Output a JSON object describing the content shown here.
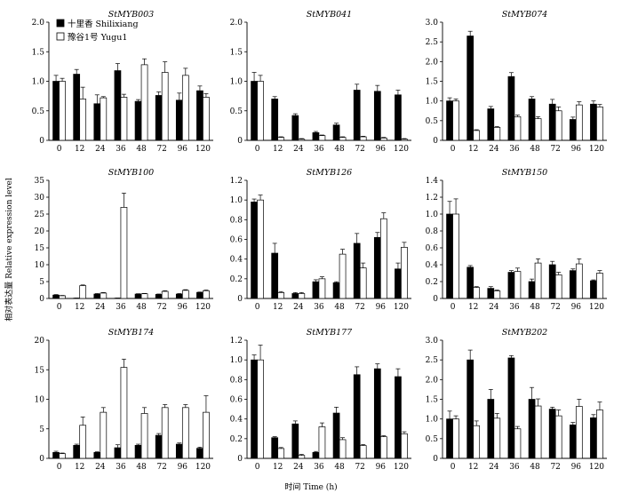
{
  "figure": {
    "ylabel": "相对表达量 Relative expression level",
    "xlabel": "时间 Time (h)"
  },
  "legend": {
    "items": [
      {
        "label": "十里香 Shilixiang",
        "fill": "#000000"
      },
      {
        "label": "豫谷1号 Yugu1",
        "fill": "#ffffff"
      }
    ]
  },
  "chart_data": [
    {
      "type": "bar",
      "title": "StMYB003",
      "categories": [
        "0",
        "12",
        "24",
        "36",
        "48",
        "72",
        "96",
        "120"
      ],
      "ylim": [
        0,
        2.0
      ],
      "yticks": [
        "0",
        "0.5",
        "1.0",
        "1.5",
        "2.0"
      ],
      "series": [
        {
          "name": "十里香 Shilixiang",
          "values": [
            1.0,
            1.12,
            0.62,
            1.18,
            0.66,
            0.76,
            0.68,
            0.84
          ],
          "errors": [
            0.1,
            0.08,
            0.15,
            0.12,
            0.03,
            0.06,
            0.12,
            0.08
          ]
        },
        {
          "name": "豫谷1号 Yugu1",
          "values": [
            1.0,
            0.7,
            0.72,
            0.73,
            1.28,
            1.15,
            1.1,
            0.73
          ],
          "errors": [
            0.05,
            0.2,
            0.02,
            0.05,
            0.1,
            0.18,
            0.12,
            0.06
          ]
        }
      ]
    },
    {
      "type": "bar",
      "title": "StMYB041",
      "categories": [
        "0",
        "12",
        "24",
        "36",
        "48",
        "72",
        "96",
        "120"
      ],
      "ylim": [
        0,
        2.0
      ],
      "yticks": [
        "0",
        "0.5",
        "1.0",
        "1.5",
        "2.0"
      ],
      "series": [
        {
          "name": "十里香 Shilixiang",
          "values": [
            1.0,
            0.7,
            0.42,
            0.13,
            0.26,
            0.85,
            0.83,
            0.77
          ],
          "errors": [
            0.15,
            0.04,
            0.03,
            0.02,
            0.03,
            0.1,
            0.1,
            0.08
          ]
        },
        {
          "name": "豫谷1号 Yugu1",
          "values": [
            1.0,
            0.05,
            0.02,
            0.08,
            0.05,
            0.06,
            0.04,
            0.02
          ],
          "errors": [
            0.1,
            0.01,
            0.01,
            0.01,
            0.01,
            0.01,
            0.01,
            0.01
          ]
        }
      ]
    },
    {
      "type": "bar",
      "title": "StMYB074",
      "categories": [
        "0",
        "12",
        "24",
        "36",
        "48",
        "72",
        "96",
        "120"
      ],
      "ylim": [
        0,
        3.0
      ],
      "yticks": [
        "0",
        "0.5",
        "1.0",
        "1.5",
        "2.0",
        "2.5",
        "3.0"
      ],
      "series": [
        {
          "name": "十里香 Shilixiang",
          "values": [
            1.0,
            2.65,
            0.8,
            1.62,
            1.05,
            0.92,
            0.53,
            0.92
          ],
          "errors": [
            0.08,
            0.12,
            0.06,
            0.1,
            0.06,
            0.12,
            0.06,
            0.08
          ]
        },
        {
          "name": "豫谷1号 Yugu1",
          "values": [
            1.0,
            0.25,
            0.33,
            0.6,
            0.55,
            0.75,
            0.9,
            0.85
          ],
          "errors": [
            0.05,
            0.02,
            0.02,
            0.04,
            0.05,
            0.1,
            0.08,
            0.06
          ]
        }
      ]
    },
    {
      "type": "bar",
      "title": "StMYB100",
      "categories": [
        "0",
        "12",
        "24",
        "36",
        "48",
        "72",
        "96",
        "120"
      ],
      "ylim": [
        0,
        35
      ],
      "yticks": [
        "0",
        "5",
        "10",
        "15",
        "20",
        "25",
        "30",
        "35"
      ],
      "series": [
        {
          "name": "十里香 Shilixiang",
          "values": [
            1.0,
            0.1,
            1.3,
            0.1,
            1.3,
            1.2,
            1.3,
            1.8
          ],
          "errors": [
            0.15,
            0.02,
            0.15,
            0.02,
            0.1,
            0.12,
            0.15,
            0.1
          ]
        },
        {
          "name": "豫谷1号 Yugu1",
          "values": [
            0.8,
            3.8,
            1.6,
            27.0,
            1.4,
            2.1,
            2.4,
            2.3
          ],
          "errors": [
            0.1,
            0.2,
            0.15,
            4.2,
            0.1,
            0.2,
            0.2,
            0.2
          ]
        }
      ]
    },
    {
      "type": "bar",
      "title": "StMYB126",
      "categories": [
        "0",
        "12",
        "24",
        "36",
        "48",
        "72",
        "96",
        "120"
      ],
      "ylim": [
        0,
        1.2
      ],
      "yticks": [
        "0",
        "0.2",
        "0.4",
        "0.6",
        "0.8",
        "1.0",
        "1.2"
      ],
      "series": [
        {
          "name": "十里香 Shilixiang",
          "values": [
            0.98,
            0.46,
            0.05,
            0.17,
            0.16,
            0.56,
            0.62,
            0.3
          ],
          "errors": [
            0.03,
            0.1,
            0.01,
            0.02,
            0.01,
            0.1,
            0.05,
            0.06
          ]
        },
        {
          "name": "豫谷1号 Yugu1",
          "values": [
            1.0,
            0.06,
            0.05,
            0.2,
            0.45,
            0.31,
            0.81,
            0.52
          ],
          "errors": [
            0.05,
            0.01,
            0.01,
            0.02,
            0.05,
            0.05,
            0.06,
            0.05
          ]
        }
      ]
    },
    {
      "type": "bar",
      "title": "StMYB150",
      "categories": [
        "0",
        "12",
        "24",
        "36",
        "48",
        "72",
        "96",
        "120"
      ],
      "ylim": [
        0,
        1.4
      ],
      "yticks": [
        "0",
        "0.2",
        "0.4",
        "0.6",
        "0.8",
        "1.0",
        "1.2",
        "1.4"
      ],
      "series": [
        {
          "name": "十里香 Shilixiang",
          "values": [
            1.0,
            0.37,
            0.12,
            0.31,
            0.2,
            0.4,
            0.33,
            0.21
          ],
          "errors": [
            0.15,
            0.02,
            0.02,
            0.02,
            0.03,
            0.04,
            0.02,
            0.01
          ]
        },
        {
          "name": "豫谷1号 Yugu1",
          "values": [
            1.0,
            0.13,
            0.09,
            0.32,
            0.42,
            0.28,
            0.41,
            0.3
          ],
          "errors": [
            0.18,
            0.01,
            0.01,
            0.04,
            0.05,
            0.03,
            0.06,
            0.03
          ]
        }
      ]
    },
    {
      "type": "bar",
      "title": "StMYB174",
      "categories": [
        "0",
        "12",
        "24",
        "36",
        "48",
        "72",
        "96",
        "120"
      ],
      "ylim": [
        0,
        20
      ],
      "yticks": [
        "0",
        "5",
        "10",
        "15",
        "20"
      ],
      "series": [
        {
          "name": "十里香 Shilixiang",
          "values": [
            1.0,
            2.2,
            1.0,
            1.8,
            2.2,
            3.9,
            2.4,
            1.7
          ],
          "errors": [
            0.2,
            0.2,
            0.1,
            0.5,
            0.2,
            0.3,
            0.2,
            0.2
          ]
        },
        {
          "name": "豫谷1号 Yugu1",
          "values": [
            0.8,
            5.6,
            7.8,
            15.4,
            7.6,
            8.6,
            8.6,
            7.8
          ],
          "errors": [
            0.1,
            1.4,
            0.8,
            1.4,
            1.0,
            0.5,
            0.5,
            2.8
          ]
        }
      ]
    },
    {
      "type": "bar",
      "title": "StMYB177",
      "categories": [
        "0",
        "12",
        "24",
        "36",
        "48",
        "72",
        "96",
        "120"
      ],
      "ylim": [
        0,
        1.2
      ],
      "yticks": [
        "0",
        "0.2",
        "0.4",
        "0.6",
        "0.8",
        "1.0",
        "1.2"
      ],
      "series": [
        {
          "name": "十里香 Shilixiang",
          "values": [
            1.0,
            0.21,
            0.35,
            0.06,
            0.46,
            0.85,
            0.91,
            0.83
          ],
          "errors": [
            0.05,
            0.01,
            0.03,
            0.01,
            0.06,
            0.08,
            0.05,
            0.08
          ]
        },
        {
          "name": "豫谷1号 Yugu1",
          "values": [
            1.0,
            0.1,
            0.03,
            0.32,
            0.19,
            0.13,
            0.22,
            0.25
          ],
          "errors": [
            0.15,
            0.01,
            0.01,
            0.04,
            0.02,
            0.01,
            0.01,
            0.02
          ]
        }
      ]
    },
    {
      "type": "bar",
      "title": "StMYB202",
      "categories": [
        "0",
        "12",
        "24",
        "36",
        "48",
        "72",
        "96",
        "120"
      ],
      "ylim": [
        0,
        3.0
      ],
      "yticks": [
        "0",
        "0.5",
        "1.0",
        "1.5",
        "2.0",
        "2.5",
        "3.0"
      ],
      "series": [
        {
          "name": "十里香 Shilixiang",
          "values": [
            1.0,
            2.5,
            1.5,
            2.55,
            1.5,
            1.25,
            0.85,
            1.03
          ],
          "errors": [
            0.2,
            0.25,
            0.25,
            0.06,
            0.3,
            0.05,
            0.06,
            0.08
          ]
        },
        {
          "name": "豫谷1号 Yugu1",
          "values": [
            1.0,
            0.83,
            1.02,
            0.75,
            1.33,
            1.08,
            1.32,
            1.23
          ],
          "errors": [
            0.08,
            0.12,
            0.12,
            0.06,
            0.18,
            0.15,
            0.18,
            0.2
          ]
        }
      ]
    }
  ]
}
